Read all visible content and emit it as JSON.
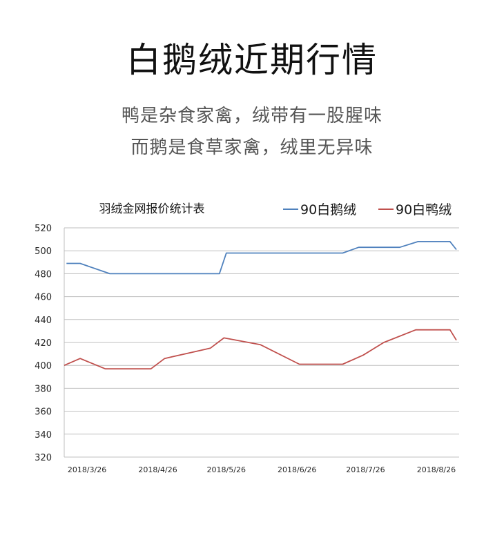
{
  "header": {
    "title": "白鹅绒近期行情",
    "subtitle_line1": "鸭是杂食家禽，绒带有一股腥味",
    "subtitle_line2": "而鹅是食草家禽，绒里无异味"
  },
  "colors": {
    "goose": "#4f81bd",
    "duck": "#c0504d",
    "grid": "#bfbfbf",
    "axis_text": "#262626"
  },
  "chart_data": {
    "type": "line",
    "title": "羽绒金网报价统计表",
    "xlabel": "",
    "ylabel": "",
    "ylim": [
      320,
      520
    ],
    "yticks": [
      320,
      340,
      360,
      380,
      400,
      420,
      440,
      460,
      480,
      500,
      520
    ],
    "xlim": [
      "2018-03-16",
      "2018-09-05"
    ],
    "xtick_labels": [
      "2018/3/26",
      "2018/4/26",
      "2018/5/26",
      "2018/6/26",
      "2018/7/26",
      "2018/8/26"
    ],
    "xtick_dates": [
      "2018-03-26",
      "2018-04-26",
      "2018-05-26",
      "2018-06-26",
      "2018-07-26",
      "2018-08-26"
    ],
    "grid": "horizontal",
    "legend_position": "top-right",
    "series": [
      {
        "name": "90白鹅绒",
        "color": "#4f81bd",
        "points": [
          [
            "2018-03-17",
            489
          ],
          [
            "2018-03-23",
            489
          ],
          [
            "2018-04-05",
            480
          ],
          [
            "2018-05-23",
            480
          ],
          [
            "2018-05-26",
            498
          ],
          [
            "2018-07-16",
            498
          ],
          [
            "2018-07-23",
            503
          ],
          [
            "2018-08-10",
            503
          ],
          [
            "2018-08-18",
            508
          ],
          [
            "2018-09-01",
            508
          ],
          [
            "2018-09-04",
            501
          ],
          [
            "2018-09-06",
            501
          ]
        ]
      },
      {
        "name": "90白鸭绒",
        "color": "#c0504d",
        "points": [
          [
            "2018-03-16",
            400
          ],
          [
            "2018-03-23",
            406
          ],
          [
            "2018-04-03",
            397
          ],
          [
            "2018-04-23",
            397
          ],
          [
            "2018-04-29",
            406
          ],
          [
            "2018-05-19",
            415
          ],
          [
            "2018-05-25",
            424
          ],
          [
            "2018-06-10",
            418
          ],
          [
            "2018-06-27",
            401
          ],
          [
            "2018-07-16",
            401
          ],
          [
            "2018-07-25",
            409
          ],
          [
            "2018-08-03",
            420
          ],
          [
            "2018-08-17",
            431
          ],
          [
            "2018-09-01",
            431
          ],
          [
            "2018-09-04",
            422
          ],
          [
            "2018-09-06",
            422
          ]
        ]
      }
    ]
  }
}
